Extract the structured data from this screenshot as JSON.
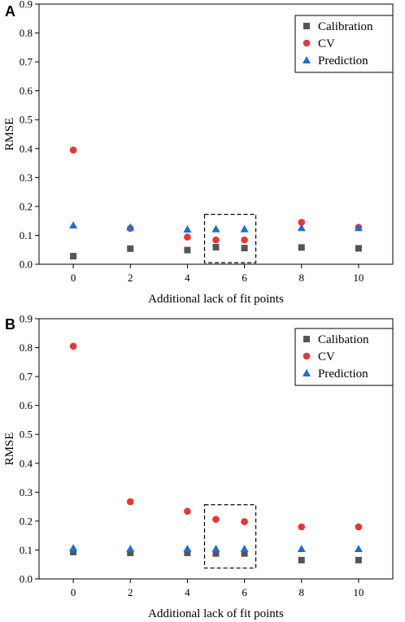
{
  "chart_data": [
    {
      "type": "scatter",
      "panel_label": "A",
      "xlabel": "Additional lack of fit points",
      "ylabel": "RMSE",
      "xlim": [
        -1.2,
        11.2
      ],
      "ylim": [
        0,
        0.9
      ],
      "xticks": [
        "0",
        "2",
        "4",
        "6",
        "8",
        "10"
      ],
      "yticks": [
        "0.0",
        "0.1",
        "0.2",
        "0.3",
        "0.4",
        "0.5",
        "0.6",
        "0.7",
        "0.8",
        "0.9"
      ],
      "grid": false,
      "legend_position": "top-right",
      "highlight_box_x": [
        5,
        6
      ],
      "series": [
        {
          "name": "Calibration",
          "marker": "square",
          "color": "#555555",
          "x": [
            0,
            2,
            4,
            5,
            6,
            8,
            10
          ],
          "y": [
            0.028,
            0.054,
            0.049,
            0.059,
            0.056,
            0.058,
            0.055
          ]
        },
        {
          "name": "CV",
          "marker": "circle",
          "color": "#ee3333",
          "x": [
            0,
            2,
            4,
            5,
            6,
            8,
            10
          ],
          "y": [
            0.395,
            0.124,
            0.094,
            0.084,
            0.084,
            0.145,
            0.128
          ]
        },
        {
          "name": "Prediction",
          "marker": "triangle",
          "color": "#1a6fd6",
          "x": [
            0,
            2,
            4,
            5,
            6,
            8,
            10
          ],
          "y": [
            0.135,
            0.128,
            0.121,
            0.122,
            0.122,
            0.126,
            0.126
          ]
        }
      ]
    },
    {
      "type": "scatter",
      "panel_label": "B",
      "xlabel": "Additional lack of fit points",
      "ylabel": "RMSE",
      "xlim": [
        -1.2,
        11.2
      ],
      "ylim": [
        0,
        0.9
      ],
      "xticks": [
        "0",
        "2",
        "4",
        "6",
        "8",
        "10"
      ],
      "yticks": [
        "0.0",
        "0.1",
        "0.2",
        "0.3",
        "0.4",
        "0.5",
        "0.6",
        "0.7",
        "0.8",
        "0.9"
      ],
      "grid": false,
      "legend_position": "top-right",
      "highlight_box_x": [
        5,
        6
      ],
      "series": [
        {
          "name": "Calibation",
          "marker": "square",
          "color": "#555555",
          "x": [
            0,
            2,
            4,
            5,
            6,
            8,
            10
          ],
          "y": [
            0.093,
            0.09,
            0.09,
            0.088,
            0.088,
            0.065,
            0.065
          ]
        },
        {
          "name": "CV",
          "marker": "circle",
          "color": "#ee3333",
          "x": [
            0,
            2,
            4,
            5,
            6,
            8,
            10
          ],
          "y": [
            0.805,
            0.267,
            0.234,
            0.206,
            0.198,
            0.18,
            0.18
          ]
        },
        {
          "name": "Prediction",
          "marker": "triangle",
          "color": "#1a6fd6",
          "x": [
            0,
            2,
            4,
            5,
            6,
            8,
            10
          ],
          "y": [
            0.107,
            0.104,
            0.104,
            0.104,
            0.104,
            0.104,
            0.104
          ]
        }
      ]
    }
  ]
}
